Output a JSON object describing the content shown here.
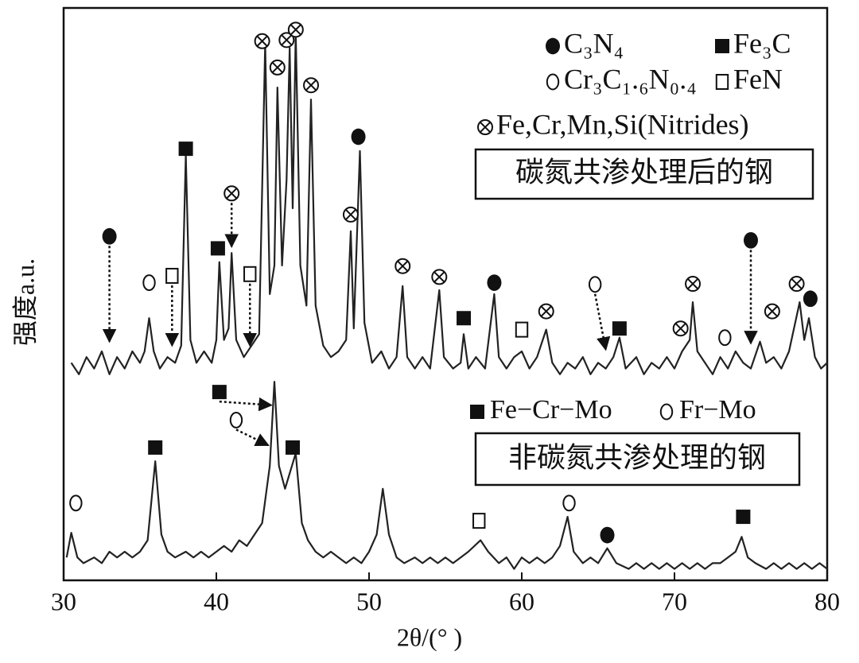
{
  "chart_data": {
    "type": "line",
    "xlabel": "2θ/(°  )",
    "ylabel": "强度a.u.",
    "xlim": [
      30,
      80
    ],
    "xticks": [
      30,
      40,
      50,
      60,
      70,
      80
    ],
    "ylim": [
      0,
      100
    ],
    "series": [
      {
        "color": "#222222",
        "x": [
          30.5,
          31,
          31.5,
          32,
          32.5,
          33,
          33.5,
          34,
          34.5,
          35,
          35.3,
          35.6,
          35.9,
          36.3,
          36.8,
          37.3,
          37.7,
          38.0,
          38.3,
          38.7,
          39.2,
          39.7,
          40.0,
          40.2,
          40.5,
          40.8,
          41.0,
          41.3,
          41.8,
          42.3,
          42.8,
          43.2,
          43.5,
          43.8,
          44.0,
          44.3,
          44.6,
          44.8,
          45.0,
          45.2,
          45.5,
          45.9,
          46.2,
          46.5,
          47,
          47.5,
          48,
          48.5,
          48.8,
          49.0,
          49.4,
          49.7,
          50.2,
          50.8,
          51.3,
          51.8,
          52.2,
          52.5,
          53,
          53.5,
          54,
          54.6,
          54.9,
          55.5,
          56,
          56.2,
          56.5,
          57,
          57.6,
          58.2,
          58.5,
          59,
          59.5,
          60,
          60.5,
          61,
          61.6,
          62,
          62.5,
          63,
          63.5,
          64,
          64.5,
          65,
          65.5,
          66,
          66.4,
          66.8,
          67.5,
          68,
          68.5,
          69,
          69.5,
          70,
          70.5,
          71,
          71.2,
          71.5,
          72,
          72.5,
          73,
          73.5,
          74,
          74.5,
          75,
          75.6,
          76,
          76.5,
          77,
          77.5,
          78.2,
          78.5,
          78.8,
          79.2,
          79.6,
          80
        ],
        "values": [
          38,
          36,
          39,
          37,
          40,
          36,
          39,
          37,
          40,
          38,
          40,
          45.8,
          40,
          37,
          39,
          38,
          41,
          74.3,
          42,
          38,
          40,
          38,
          42,
          55.6,
          42,
          44,
          57.2,
          42,
          39,
          41,
          43,
          93.8,
          50,
          55,
          86.1,
          55,
          70,
          93,
          65,
          95.8,
          55,
          48,
          84,
          48,
          41,
          39,
          40,
          42,
          61,
          44,
          75,
          45,
          38,
          40,
          37,
          39,
          51.4,
          39,
          37,
          39,
          37,
          50.7,
          39,
          37,
          38,
          43,
          37,
          39,
          37,
          50,
          39,
          37,
          39,
          40,
          37,
          39,
          43.8,
          38,
          36,
          38,
          37,
          39,
          36,
          38,
          37,
          39,
          42.4,
          37,
          39,
          36,
          38,
          37,
          39,
          37,
          40,
          42,
          48.6,
          40,
          38,
          36,
          39,
          37,
          40,
          38,
          37,
          41.7,
          38,
          39,
          37,
          40,
          48.6,
          42,
          45.8,
          39,
          37,
          38
        ]
      },
      {
        "color": "#222222",
        "x": [
          30.2,
          30.5,
          30.9,
          31.3,
          32,
          32.5,
          33,
          33.5,
          34,
          34.5,
          35,
          35.5,
          36.0,
          36.4,
          36.8,
          37.3,
          38,
          38.5,
          39,
          39.5,
          40,
          40.5,
          41,
          41.5,
          42,
          42.5,
          43,
          43.5,
          43.8,
          44.1,
          44.5,
          45.2,
          45.6,
          46,
          46.5,
          47,
          47.5,
          48,
          48.5,
          49,
          49.5,
          50,
          50.5,
          50.9,
          51.3,
          51.8,
          52.3,
          53,
          53.5,
          54,
          54.5,
          55,
          55.5,
          56,
          56.5,
          57.3,
          57.8,
          58.5,
          59,
          59.5,
          60,
          60.5,
          61,
          61.5,
          62,
          62.5,
          63.0,
          63.4,
          64,
          64.5,
          65,
          65.6,
          66.2,
          67,
          67.5,
          68,
          68.5,
          69,
          69.5,
          70,
          70.5,
          71,
          71.5,
          72,
          72.5,
          73,
          73.5,
          74,
          74.4,
          74.8,
          75.3,
          76,
          76.5,
          77,
          77.5,
          78,
          78.5,
          79,
          79.5,
          80
        ],
        "values": [
          4,
          8.3,
          4,
          3,
          4,
          3,
          5,
          4,
          5,
          4,
          5,
          7,
          20.8,
          8,
          5,
          4,
          5,
          4,
          5,
          4,
          5,
          6,
          5,
          7,
          6,
          8,
          10,
          20,
          34.7,
          20,
          16,
          22.2,
          10,
          7,
          5,
          4,
          5,
          4,
          3,
          4,
          3,
          5,
          8,
          16,
          8,
          4,
          3,
          4,
          3,
          4,
          3,
          4,
          3,
          4,
          5,
          7,
          5,
          3,
          4,
          2,
          4,
          3,
          4,
          3,
          4,
          6,
          11.1,
          5,
          3,
          4,
          3,
          5.6,
          3,
          2,
          3,
          2,
          3,
          2,
          3,
          2,
          3,
          2,
          3,
          2,
          3,
          3,
          4,
          5,
          7.6,
          4,
          3,
          2,
          3,
          2,
          3,
          2,
          3,
          2,
          3,
          2
        ]
      }
    ],
    "markers": [
      {
        "symbol": "filled-circle",
        "x": 33.0,
        "y": 60.1,
        "arrow": [
          33.0,
          41.7
        ]
      },
      {
        "symbol": "open-circle",
        "x": 35.6,
        "y": 52
      },
      {
        "symbol": "open-square",
        "x": 37.1,
        "y": 53.2,
        "arrow": [
          37.1,
          41
        ]
      },
      {
        "symbol": "filled-square",
        "x": 38.0,
        "y": 75.4
      },
      {
        "symbol": "filled-square",
        "x": 40.1,
        "y": 58
      },
      {
        "symbol": "crossed-circle",
        "x": 41.0,
        "y": 67.6,
        "arrow": [
          41.0,
          58.3
        ]
      },
      {
        "symbol": "open-square",
        "x": 42.2,
        "y": 53.5,
        "arrow": [
          42.2,
          41
        ]
      },
      {
        "symbol": "crossed-circle",
        "x": 43.0,
        "y": 94.2
      },
      {
        "symbol": "crossed-circle",
        "x": 44.0,
        "y": 89.6
      },
      {
        "symbol": "crossed-circle",
        "x": 44.6,
        "y": 94.4
      },
      {
        "symbol": "crossed-circle",
        "x": 45.2,
        "y": 96.2
      },
      {
        "symbol": "crossed-circle",
        "x": 46.2,
        "y": 86.5
      },
      {
        "symbol": "crossed-circle",
        "x": 48.8,
        "y": 63.9
      },
      {
        "symbol": "filled-circle",
        "x": 49.3,
        "y": 77.5
      },
      {
        "symbol": "crossed-circle",
        "x": 52.2,
        "y": 54.9
      },
      {
        "symbol": "crossed-circle",
        "x": 54.6,
        "y": 53
      },
      {
        "symbol": "filled-square",
        "x": 56.2,
        "y": 45.8
      },
      {
        "symbol": "filled-circle",
        "x": 58.2,
        "y": 52
      },
      {
        "symbol": "open-square",
        "x": 60.0,
        "y": 43.8
      },
      {
        "symbol": "crossed-circle",
        "x": 61.6,
        "y": 47
      },
      {
        "symbol": "open-circle",
        "x": 64.8,
        "y": 51.7,
        "arrow": [
          65.5,
          40.3
        ]
      },
      {
        "symbol": "filled-square",
        "x": 66.4,
        "y": 44
      },
      {
        "symbol": "crossed-circle",
        "x": 70.4,
        "y": 44
      },
      {
        "symbol": "crossed-circle",
        "x": 71.2,
        "y": 51.8
      },
      {
        "symbol": "open-circle",
        "x": 73.3,
        "y": 42.4
      },
      {
        "symbol": "filled-circle",
        "x": 75.0,
        "y": 59.4,
        "arrow": [
          75.0,
          41.4
        ]
      },
      {
        "symbol": "crossed-circle",
        "x": 76.4,
        "y": 47
      },
      {
        "symbol": "crossed-circle",
        "x": 78.0,
        "y": 51.8
      },
      {
        "symbol": "filled-circle",
        "x": 78.9,
        "y": 49.2
      },
      {
        "symbol": "open-circle",
        "x": 30.8,
        "y": 13.5
      },
      {
        "symbol": "filled-square",
        "x": 36.0,
        "y": 23.2
      },
      {
        "symbol": "filled-square",
        "x": 40.2,
        "y": 32.9,
        "arrow": [
          43.6,
          30.6
        ]
      },
      {
        "symbol": "open-circle",
        "x": 41.3,
        "y": 28,
        "arrow": [
          43.4,
          23.6
        ]
      },
      {
        "symbol": "filled-square",
        "x": 45.0,
        "y": 23.2
      },
      {
        "symbol": "open-square",
        "x": 57.2,
        "y": 10.4
      },
      {
        "symbol": "open-circle",
        "x": 63.1,
        "y": 13.5
      },
      {
        "symbol": "filled-circle",
        "x": 65.6,
        "y": 7.9
      },
      {
        "symbol": "filled-square",
        "x": 74.5,
        "y": 11.1
      }
    ],
    "legend_top": [
      {
        "symbol": "filled-circle",
        "label": "C₃N₄"
      },
      {
        "symbol": "filled-square",
        "label": "Fe₃C"
      },
      {
        "symbol": "open-circle",
        "label": "Cr₃C₁.₆N₀.₄"
      },
      {
        "symbol": "open-square",
        "label": "FeN"
      },
      {
        "symbol": "crossed-circle",
        "label": "Fe,Cr,Mn,Si(Nitrides)"
      }
    ],
    "legend_bottom": [
      {
        "symbol": "filled-square",
        "label": "Fe−Cr−Mo"
      },
      {
        "symbol": "open-circle",
        "label": "Fr−Mo"
      }
    ],
    "sample_labels": [
      "碳氮共渗处理后的钢",
      "非碳氮共渗处理的钢"
    ]
  }
}
